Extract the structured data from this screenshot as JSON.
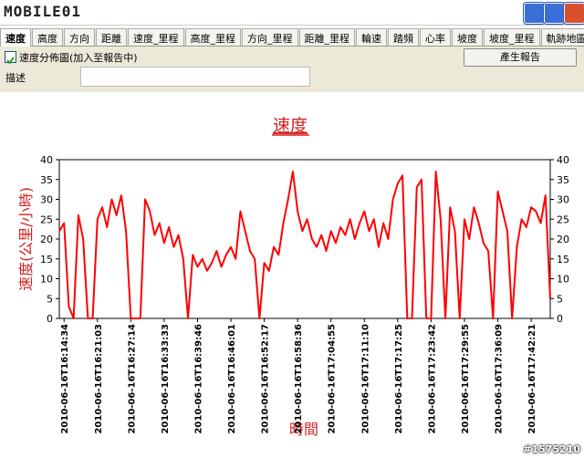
{
  "window": {
    "app_name": "MOBILE01"
  },
  "tabs": [
    "速度",
    "高度",
    "方向",
    "距離",
    "速度_里程",
    "高度_里程",
    "方向_里程",
    "距離_里程",
    "輪速",
    "踏頻",
    "心率",
    "坡度",
    "坡度_里程",
    "軌跡地圖"
  ],
  "options": {
    "checkbox_label": "速度分佈圖(加入至報告中)",
    "button": "產生報告",
    "description_label": "描述"
  },
  "chart_data": {
    "type": "line",
    "title": "速度",
    "y_label": "速度(公里/小時)",
    "x_label": "時間",
    "series": [
      {
        "name": "速度",
        "color": "#ff0000",
        "values": [
          22,
          24,
          3,
          0,
          26,
          20,
          0,
          0,
          25,
          28,
          23,
          30,
          26,
          31,
          22,
          0,
          0,
          0,
          30,
          27,
          21,
          24,
          19,
          23,
          18,
          21,
          15,
          0,
          16,
          13,
          15,
          12,
          14,
          17,
          13,
          16,
          18,
          15,
          27,
          22,
          17,
          15,
          0,
          14,
          12,
          18,
          16,
          24,
          30,
          37,
          27,
          22,
          25,
          20,
          18,
          21,
          17,
          22,
          19,
          23,
          21,
          25,
          20,
          24,
          27,
          22,
          25,
          18,
          24,
          20,
          30,
          34,
          36,
          0,
          0,
          33,
          35,
          0,
          0,
          37,
          25,
          0,
          28,
          22,
          0,
          25,
          20,
          28,
          24,
          19,
          17,
          0,
          32,
          27,
          22,
          0,
          18,
          25,
          23,
          28,
          27,
          24,
          31,
          5
        ]
      }
    ],
    "xlim": [
      0,
      103
    ],
    "xticks": [
      {
        "value": 1,
        "label": "2010-06-16T16:14:34"
      },
      {
        "value": 8,
        "label": "2010-06-16T16:21:03"
      },
      {
        "value": 15,
        "label": "2010-06-16T16:27:14"
      },
      {
        "value": 22,
        "label": "2010-06-16T16:33:33"
      },
      {
        "value": 29,
        "label": "2010-06-16T16:39:46"
      },
      {
        "value": 36,
        "label": "2010-06-16T16:46:01"
      },
      {
        "value": 43,
        "label": "2010-06-16T16:52:17"
      },
      {
        "value": 50,
        "label": "2010-06-16T16:58:36"
      },
      {
        "value": 57,
        "label": "2010-06-16T17:04:55"
      },
      {
        "value": 64,
        "label": "2010-06-16T17:11:10"
      },
      {
        "value": 71,
        "label": "2010-06-16T17:17:25"
      },
      {
        "value": 78,
        "label": "2010-06-16T17:23:42"
      },
      {
        "value": 85,
        "label": "2010-06-16T17:29:55"
      },
      {
        "value": 92,
        "label": "2010-06-16T17:36:09"
      },
      {
        "value": 99,
        "label": "2010-06-16T17:42:21"
      }
    ],
    "ylim": [
      0,
      40
    ],
    "yticks": [
      0,
      5,
      10,
      15,
      20,
      25,
      30,
      35,
      40
    ],
    "y2lim": [
      0,
      40
    ],
    "y2ticks": [
      0,
      5,
      10,
      15,
      20,
      25,
      30,
      35,
      40
    ],
    "grid": false
  },
  "watermark": "#1575210"
}
